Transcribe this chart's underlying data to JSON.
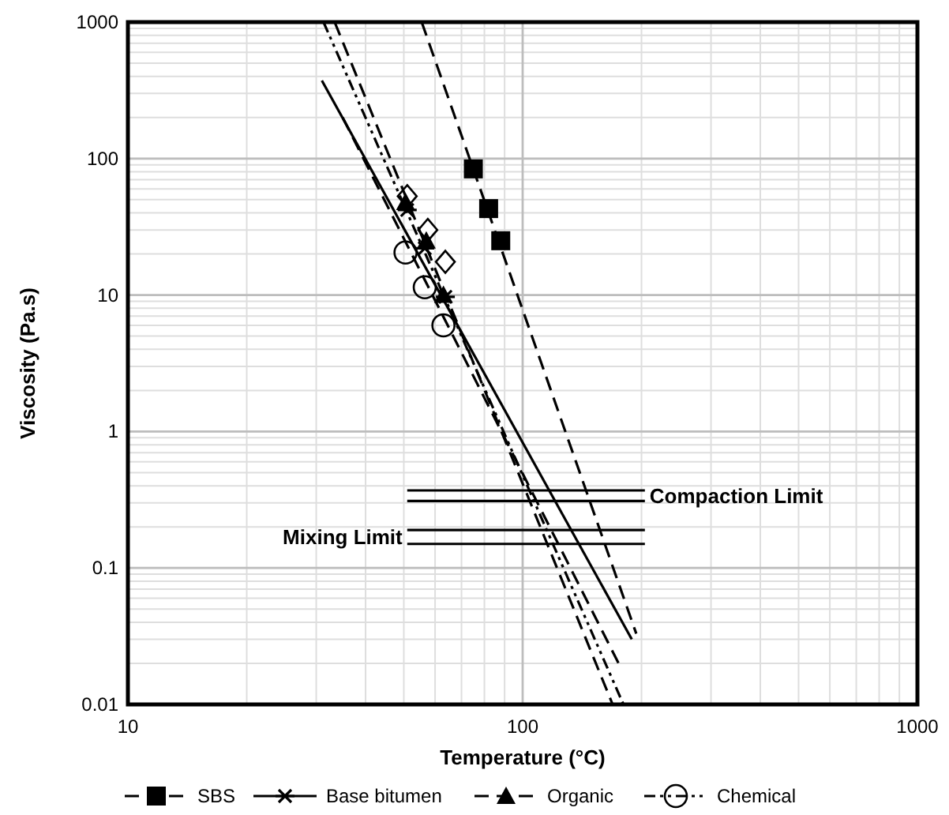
{
  "chart_data": {
    "type": "scatter",
    "xlabel": "Temperature (°C)",
    "ylabel": "Viscosity (Pa.s)",
    "log": "xy",
    "grid": true,
    "legend": "bottom",
    "xlim": [
      10,
      1000
    ],
    "xticks": [
      10,
      100,
      1000
    ],
    "ylim": [
      0.01,
      1000
    ],
    "yticks": [
      0.01,
      0.1,
      1,
      10,
      100,
      1000
    ],
    "series": [
      {
        "name": "SBS",
        "color": "#000000",
        "marker": "square",
        "line_style": "dashed",
        "x": [
          75,
          82,
          88
        ],
        "values": [
          84,
          43,
          25
        ]
      },
      {
        "type": "line",
        "color": "#000000",
        "marker": "none",
        "line_style": "dashed",
        "x": [
          55.5,
          194
        ],
        "values": [
          1000,
          0.033
        ]
      },
      {
        "color": "#000000",
        "marker": "diamond",
        "x": [
          51,
          57.5,
          63.7
        ],
        "values": [
          53,
          30,
          17.5
        ]
      },
      {
        "type": "line",
        "color": "#000000",
        "marker": "none",
        "line_style": "dashed",
        "x": [
          35,
          175
        ],
        "values": [
          200,
          0.02
        ]
      },
      {
        "name": "Base bitumen",
        "color": "#000000",
        "marker": "cross",
        "line_style": "solid",
        "x": [
          51,
          56.5,
          63.7
        ],
        "values": [
          42,
          22,
          9.7
        ]
      },
      {
        "type": "line",
        "color": "#000000",
        "marker": "none",
        "line_style": "solid",
        "x": [
          31,
          189
        ],
        "values": [
          373,
          0.03
        ]
      },
      {
        "name": "Organic",
        "color": "#000000",
        "marker": "triangle",
        "line_style": "dashed",
        "x": [
          50.5,
          57,
          63
        ],
        "values": [
          48,
          25,
          10
        ]
      },
      {
        "type": "line",
        "color": "#000000",
        "marker": "none",
        "line_style": "dashed",
        "x": [
          33.4,
          169
        ],
        "values": [
          1000,
          0.01
        ]
      },
      {
        "name": "Chemical",
        "color": "#000000",
        "marker": "circle",
        "line_style": "dotted",
        "x": [
          50.5,
          56.5,
          63
        ],
        "values": [
          20.5,
          11.4,
          6
        ]
      },
      {
        "type": "line",
        "color": "#000000",
        "marker": "none",
        "line_style": "dotted",
        "x": [
          31.3,
          180
        ],
        "values": [
          1000,
          0.01
        ]
      },
      {
        "type": "line",
        "color": "#000000",
        "marker": "none",
        "line_style": "solid",
        "x": [
          51,
          204
        ],
        "values": [
          0.37,
          0.37
        ]
      },
      {
        "type": "line",
        "color": "#000000",
        "marker": "none",
        "line_style": "solid",
        "x": [
          51,
          204
        ],
        "values": [
          0.31,
          0.31
        ]
      },
      {
        "type": "line",
        "color": "#000000",
        "marker": "none",
        "line_style": "solid",
        "x": [
          51,
          204
        ],
        "values": [
          0.19,
          0.19
        ]
      },
      {
        "type": "line",
        "color": "#000000",
        "marker": "none",
        "line_style": "solid",
        "x": [
          51,
          204
        ],
        "values": [
          0.15,
          0.15
        ]
      }
    ],
    "annotations": [
      {
        "text": "Compaction Limit",
        "x": 204,
        "y": 0.34
      },
      {
        "text": "Mixing Limit",
        "x": 51,
        "y": 0.17
      }
    ]
  }
}
